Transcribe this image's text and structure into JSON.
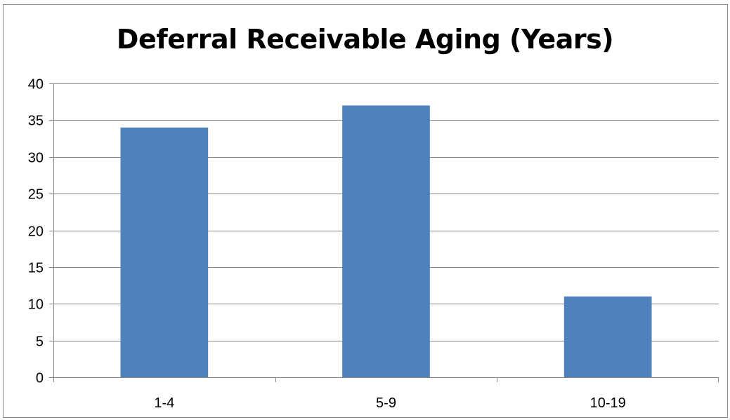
{
  "chart_data": {
    "type": "bar",
    "title": "Deferral Receivable Aging (Years)",
    "categories": [
      "1-4",
      "5-9",
      "10-19"
    ],
    "values": [
      34,
      37,
      11
    ],
    "xlabel": "",
    "ylabel": "",
    "ylim": [
      0,
      40
    ],
    "yticks": [
      0,
      5,
      10,
      15,
      20,
      25,
      30,
      35,
      40
    ],
    "grid": true,
    "legend": "none",
    "bar_color": "#4f81bd",
    "grid_color": "#868686"
  }
}
